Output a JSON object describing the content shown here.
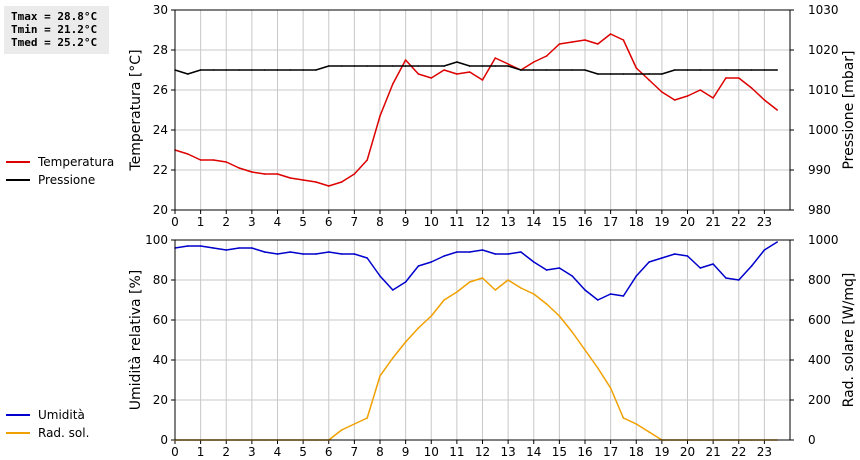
{
  "stats": [
    {
      "label": "Tmax",
      "value": "28.8°C",
      "text": "Tmax = 28.8°C"
    },
    {
      "label": "Tmin",
      "value": "21.2°C",
      "text": "Tmin = 21.2°C"
    },
    {
      "label": "Tmed",
      "value": "25.2°C",
      "text": "Tmed = 25.2°C"
    }
  ],
  "chart_data": [
    {
      "type": "line",
      "title": "",
      "xlabel": "",
      "ylabel": "Temperatura [°C]",
      "y2label": "Pressione [mbar]",
      "xlim": [
        0,
        24
      ],
      "xticks": [
        0,
        1,
        2,
        3,
        4,
        5,
        6,
        7,
        8,
        9,
        10,
        11,
        12,
        13,
        14,
        15,
        16,
        17,
        18,
        19,
        20,
        21,
        22,
        23
      ],
      "ylim": [
        20,
        30
      ],
      "yticks": [
        20,
        22,
        24,
        26,
        28,
        30
      ],
      "y2lim": [
        980,
        1030
      ],
      "y2ticks": [
        980,
        990,
        1000,
        1010,
        1020,
        1030
      ],
      "grid": true,
      "legend_position": "left",
      "series": [
        {
          "name": "Temperatura",
          "color": "#dd0000",
          "axis": "left",
          "x": [
            0,
            0.5,
            1,
            1.5,
            2,
            2.5,
            3,
            3.5,
            4,
            4.5,
            5,
            5.5,
            6,
            6.5,
            7,
            7.5,
            8,
            8.5,
            9,
            9.5,
            10,
            10.5,
            11,
            11.5,
            12,
            12.5,
            13,
            13.5,
            14,
            14.5,
            15,
            15.5,
            16,
            16.5,
            17,
            17.5,
            18,
            18.5,
            19,
            19.5,
            20,
            20.5,
            21,
            21.5,
            22,
            22.5,
            23,
            23.5
          ],
          "values": [
            23.0,
            22.8,
            22.5,
            22.5,
            22.4,
            22.1,
            21.9,
            21.8,
            21.8,
            21.6,
            21.5,
            21.4,
            21.2,
            21.4,
            21.8,
            22.5,
            24.7,
            26.3,
            27.5,
            26.8,
            26.6,
            27.0,
            26.8,
            26.9,
            26.5,
            27.6,
            27.3,
            27.0,
            27.4,
            27.7,
            28.3,
            28.4,
            28.5,
            28.3,
            28.8,
            28.5,
            27.1,
            26.5,
            25.9,
            25.5,
            25.7,
            26.0,
            25.6,
            26.6,
            26.6,
            26.1,
            25.5,
            25.0
          ]
        },
        {
          "name": "Pressione",
          "color": "#000000",
          "axis": "right",
          "x": [
            0,
            0.5,
            1,
            1.5,
            2,
            2.5,
            3,
            3.5,
            4,
            4.5,
            5,
            5.5,
            6,
            6.5,
            7,
            7.5,
            8,
            8.5,
            9,
            9.5,
            10,
            10.5,
            11,
            11.5,
            12,
            12.5,
            13,
            13.5,
            14,
            14.5,
            15,
            15.5,
            16,
            16.5,
            17,
            17.5,
            18,
            18.5,
            19,
            19.5,
            20,
            20.5,
            21,
            21.5,
            22,
            22.5,
            23,
            23.5
          ],
          "values": [
            1015,
            1014,
            1015,
            1015,
            1015,
            1015,
            1015,
            1015,
            1015,
            1015,
            1015,
            1015,
            1016,
            1016,
            1016,
            1016,
            1016,
            1016,
            1016,
            1016,
            1016,
            1016,
            1017,
            1016,
            1016,
            1016,
            1016,
            1015,
            1015,
            1015,
            1015,
            1015,
            1015,
            1014,
            1014,
            1014,
            1014,
            1014,
            1014,
            1015,
            1015,
            1015,
            1015,
            1015,
            1015,
            1015,
            1015,
            1015
          ]
        }
      ]
    },
    {
      "type": "line",
      "title": "",
      "xlabel": "",
      "ylabel": "Umidità relativa [%]",
      "y2label": "Rad. solare [W/mq]",
      "xlim": [
        0,
        24
      ],
      "xticks": [
        0,
        1,
        2,
        3,
        4,
        5,
        6,
        7,
        8,
        9,
        10,
        11,
        12,
        13,
        14,
        15,
        16,
        17,
        18,
        19,
        20,
        21,
        22,
        23
      ],
      "ylim": [
        0,
        100
      ],
      "yticks": [
        0,
        20,
        40,
        60,
        80,
        100
      ],
      "y2lim": [
        0,
        1000
      ],
      "y2ticks": [
        0,
        200,
        400,
        600,
        800,
        1000
      ],
      "grid": true,
      "legend_position": "left",
      "series": [
        {
          "name": "Umidità",
          "color": "#0000cc",
          "axis": "left",
          "x": [
            0,
            0.5,
            1,
            1.5,
            2,
            2.5,
            3,
            3.5,
            4,
            4.5,
            5,
            5.5,
            6,
            6.5,
            7,
            7.5,
            8,
            8.5,
            9,
            9.5,
            10,
            10.5,
            11,
            11.5,
            12,
            12.5,
            13,
            13.5,
            14,
            14.5,
            15,
            15.5,
            16,
            16.5,
            17,
            17.5,
            18,
            18.5,
            19,
            19.5,
            20,
            20.5,
            21,
            21.5,
            22,
            22.5,
            23,
            23.5
          ],
          "values": [
            96,
            97,
            97,
            96,
            95,
            96,
            96,
            94,
            93,
            94,
            93,
            93,
            94,
            93,
            93,
            91,
            82,
            75,
            79,
            87,
            89,
            92,
            94,
            94,
            95,
            93,
            93,
            94,
            89,
            85,
            86,
            82,
            75,
            70,
            73,
            72,
            82,
            89,
            91,
            93,
            92,
            86,
            88,
            81,
            80,
            87,
            95,
            99
          ]
        },
        {
          "name": "Rad. sol.",
          "color": "#f0a000",
          "axis": "right",
          "x": [
            0,
            0.5,
            1,
            1.5,
            2,
            2.5,
            3,
            3.5,
            4,
            4.5,
            5,
            5.5,
            6,
            6.5,
            7,
            7.5,
            8,
            8.5,
            9,
            9.5,
            10,
            10.5,
            11,
            11.5,
            12,
            12.5,
            13,
            13.5,
            14,
            14.5,
            15,
            15.5,
            16,
            16.5,
            17,
            17.5,
            18,
            18.5,
            19,
            19.5,
            20,
            20.5,
            21,
            21.5,
            22,
            22.5,
            23,
            23.5
          ],
          "values": [
            0,
            0,
            0,
            0,
            0,
            0,
            0,
            0,
            0,
            0,
            0,
            0,
            0,
            50,
            80,
            110,
            320,
            410,
            490,
            560,
            620,
            700,
            740,
            790,
            810,
            750,
            800,
            760,
            730,
            680,
            620,
            540,
            450,
            360,
            260,
            110,
            80,
            40,
            0,
            0,
            0,
            0,
            0,
            0,
            0,
            0,
            0,
            0
          ]
        }
      ]
    }
  ]
}
